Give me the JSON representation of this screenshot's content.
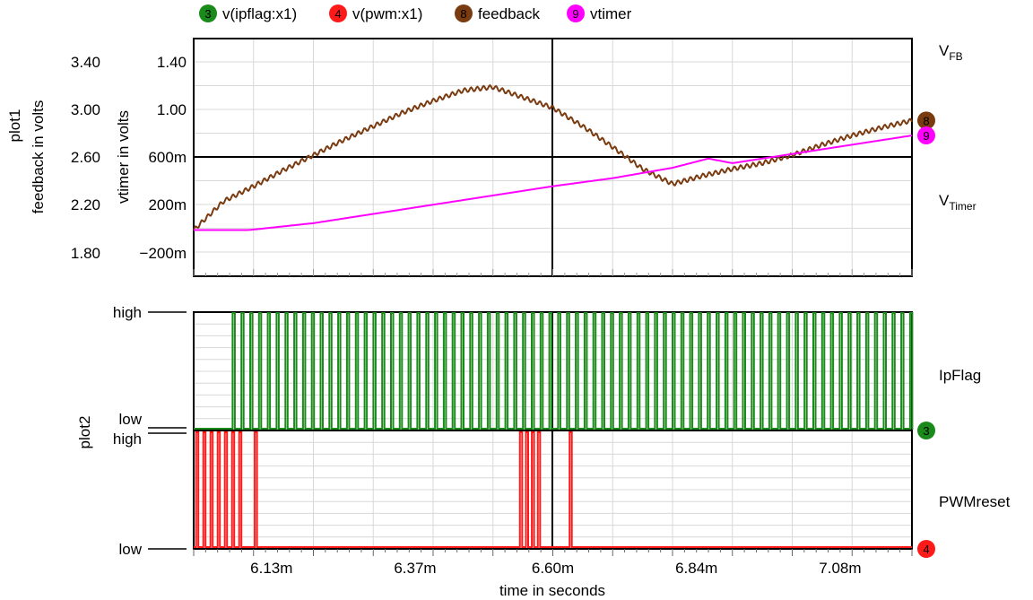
{
  "chart_data": [
    {
      "name": "plot1",
      "type": "line",
      "plot_label": "plot1",
      "xlabel": "time in seconds",
      "x_range": [
        6.0,
        7.2
      ],
      "x_unit": "ms",
      "x_ticks": [
        "6.13m",
        "6.37m",
        "6.60m",
        "6.84m",
        "7.08m"
      ],
      "y_axes": [
        {
          "label": "feedback in volts",
          "ticks": [
            "3.40",
            "3.00",
            "2.60",
            "2.20",
            "1.80"
          ],
          "range": [
            1.6,
            3.66
          ]
        },
        {
          "label": "vtimer in volts",
          "ticks": [
            "1.40",
            "1.00",
            "600m",
            "200m",
            "−200m"
          ],
          "range": [
            -0.4,
            1.66
          ]
        }
      ],
      "series": [
        {
          "name": "feedback",
          "number": "8",
          "color": "#7a3b10",
          "axis": 0,
          "x": [
            6.0,
            6.05,
            6.1,
            6.15,
            6.2,
            6.25,
            6.3,
            6.35,
            6.4,
            6.45,
            6.5,
            6.55,
            6.6,
            6.65,
            6.7,
            6.75,
            6.8,
            6.85,
            6.9,
            6.95,
            7.0,
            7.05,
            7.1,
            7.15,
            7.2
          ],
          "values": [
            2.0,
            2.25,
            2.38,
            2.52,
            2.65,
            2.78,
            2.9,
            3.02,
            3.12,
            3.21,
            3.24,
            3.15,
            3.06,
            2.9,
            2.72,
            2.53,
            2.4,
            2.47,
            2.53,
            2.58,
            2.65,
            2.74,
            2.82,
            2.89,
            2.95
          ]
        },
        {
          "name": "vtimer",
          "number": "9",
          "color": "#ff00ff",
          "axis": 1,
          "x": [
            6.0,
            6.09,
            6.11,
            6.2,
            6.3,
            6.4,
            6.5,
            6.6,
            6.7,
            6.8,
            6.86,
            6.9,
            6.95,
            7.0,
            7.1,
            7.2
          ],
          "values": [
            0.0,
            0.0,
            0.01,
            0.06,
            0.14,
            0.22,
            0.3,
            0.38,
            0.45,
            0.54,
            0.62,
            0.58,
            0.62,
            0.66,
            0.74,
            0.82
          ]
        }
      ],
      "right_labels": [
        {
          "main": "V",
          "sub": "FB"
        },
        {
          "main": "V",
          "sub": "Timer"
        }
      ]
    },
    {
      "name": "plot2",
      "type": "digital",
      "plot_label": "plot2",
      "tick_high": "high",
      "tick_low": "low",
      "series": [
        {
          "name": "v(ipflag:x1)",
          "number": "3",
          "color": "#1a8a1a",
          "label": "IpFlag",
          "pulse_start": 6.065,
          "pulse_end": 7.2,
          "pulse_period": 0.0147
        },
        {
          "name": "v(pwm:x1)",
          "number": "4",
          "color": "#ff1a1a",
          "label": "PWMreset",
          "pulses": [
            6.004,
            6.016,
            6.028,
            6.04,
            6.052,
            6.064,
            6.076,
            6.102,
            6.545,
            6.555,
            6.565,
            6.575,
            6.628
          ]
        }
      ]
    }
  ],
  "legend": [
    {
      "number": "3",
      "label": "v(ipflag:x1)",
      "color": "#1a8a1a"
    },
    {
      "number": "4",
      "label": "v(pwm:x1)",
      "color": "#ff1a1a"
    },
    {
      "number": "8",
      "label": "feedback",
      "color": "#7a3b10"
    },
    {
      "number": "9",
      "label": "vtimer",
      "color": "#ff00ff"
    }
  ]
}
